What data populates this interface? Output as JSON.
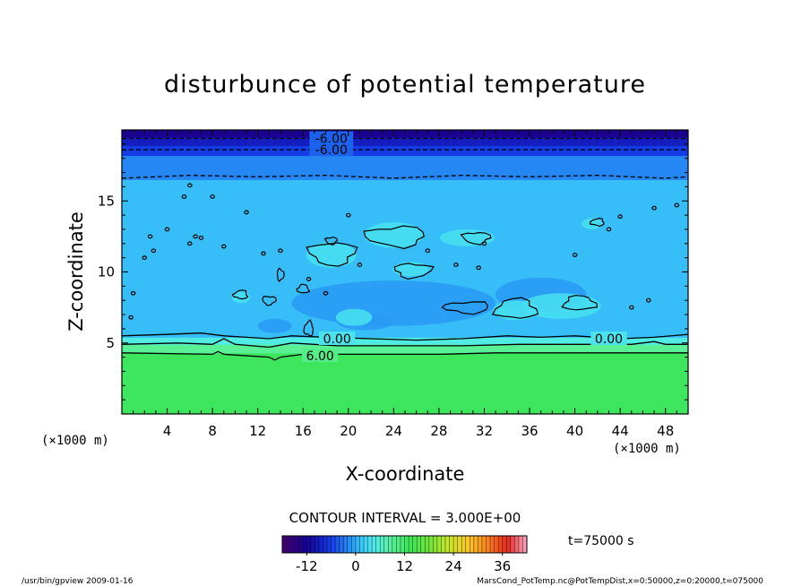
{
  "chart_data": {
    "type": "heatmap",
    "title": "disturbunce of potential temperature",
    "xlabel": "X-coordinate",
    "ylabel": "Z-coordinate",
    "x_unit": "(×1000 m)",
    "z_unit": "(×1000 m)",
    "xlim": [
      0,
      50
    ],
    "ylim": [
      0,
      20
    ],
    "x_ticks": [
      4,
      8,
      12,
      16,
      20,
      24,
      28,
      32,
      36,
      40,
      44,
      48
    ],
    "y_ticks": [
      5,
      10,
      15
    ],
    "contour_interval": "CONTOUR INTERVAL = 3.000E+00",
    "time_label": "t=75000 s",
    "colorbar": {
      "range": [
        -18,
        42
      ],
      "ticks": [
        -12,
        0,
        12,
        24,
        36
      ]
    },
    "bands": [
      {
        "z0": 0.0,
        "z1": 4.3,
        "value": 13
      },
      {
        "z0": 4.3,
        "z1": 4.9,
        "value": 9
      },
      {
        "z0": 4.9,
        "z1": 5.4,
        "value": 5
      },
      {
        "z0": 5.4,
        "z1": 16.5,
        "value": 1
      },
      {
        "z0": 16.5,
        "z1": 18.2,
        "value": -2
      },
      {
        "z0": 18.2,
        "z1": 18.9,
        "value": -6
      },
      {
        "z0": 18.9,
        "z1": 19.5,
        "value": -9
      },
      {
        "z0": 19.5,
        "z1": 20.0,
        "value": -13
      }
    ],
    "contour_labels": [
      {
        "text": "-6.00",
        "x": 18.5,
        "z": 19.4
      },
      {
        "text": "-6.00",
        "x": 18.5,
        "z": 18.6
      },
      {
        "text": "0.00",
        "x": 19.0,
        "z": 5.3
      },
      {
        "text": "0.00",
        "x": 43.0,
        "z": 5.3
      },
      {
        "text": "6.00",
        "x": 17.5,
        "z": 4.1
      }
    ],
    "warm_patches": [
      {
        "x": 24.0,
        "z": 12.6,
        "rx": 2.6,
        "rz": 0.9
      },
      {
        "x": 18.5,
        "z": 11.2,
        "rx": 2.2,
        "rz": 0.9
      },
      {
        "x": 25.5,
        "z": 10.2,
        "rx": 1.6,
        "rz": 0.5
      },
      {
        "x": 30.5,
        "z": 12.4,
        "rx": 2.4,
        "rz": 0.6
      },
      {
        "x": 38.8,
        "z": 7.6,
        "rx": 3.5,
        "rz": 0.9
      },
      {
        "x": 34.8,
        "z": 7.3,
        "rx": 2.0,
        "rz": 0.7
      },
      {
        "x": 41.5,
        "z": 13.4,
        "rx": 0.9,
        "rz": 0.4
      },
      {
        "x": 20.5,
        "z": 6.8,
        "rx": 1.6,
        "rz": 0.6
      },
      {
        "x": 10.5,
        "z": 8.2,
        "rx": 0.8,
        "rz": 0.4
      }
    ],
    "cool_patches": [
      {
        "x": 24.0,
        "z": 7.8,
        "rx": 9.0,
        "rz": 1.6
      },
      {
        "x": 37.0,
        "z": 8.4,
        "rx": 4.0,
        "rz": 1.2
      },
      {
        "x": 21.5,
        "z": 6.5,
        "rx": 2.5,
        "rz": 0.6
      },
      {
        "x": 13.5,
        "z": 6.2,
        "rx": 1.5,
        "rz": 0.5
      }
    ],
    "solid_contours": [
      [
        [
          0,
          5.5
        ],
        [
          4,
          5.6
        ],
        [
          7,
          5.7
        ],
        [
          9,
          5.5
        ],
        [
          11,
          5.4
        ],
        [
          13,
          5.3
        ],
        [
          15,
          5.5
        ],
        [
          18,
          5.4
        ],
        [
          22,
          5.3
        ],
        [
          26,
          5.2
        ],
        [
          30,
          5.3
        ],
        [
          34,
          5.5
        ],
        [
          37,
          5.4
        ],
        [
          40,
          5.5
        ],
        [
          44,
          5.3
        ],
        [
          47,
          5.4
        ],
        [
          50,
          5.6
        ]
      ],
      [
        [
          0,
          4.9
        ],
        [
          5,
          5.0
        ],
        [
          8,
          4.9
        ],
        [
          9,
          5.3
        ],
        [
          10,
          4.9
        ],
        [
          13,
          4.7
        ],
        [
          15,
          5.0
        ],
        [
          19,
          4.8
        ],
        [
          25,
          4.8
        ],
        [
          30,
          4.8
        ],
        [
          35,
          4.9
        ],
        [
          40,
          4.9
        ],
        [
          45,
          4.9
        ],
        [
          47,
          5.1
        ],
        [
          48,
          4.9
        ],
        [
          50,
          4.9
        ]
      ],
      [
        [
          0,
          4.3
        ],
        [
          8,
          4.2
        ],
        [
          8.5,
          4.4
        ],
        [
          9,
          4.2
        ],
        [
          13,
          4.0
        ],
        [
          13.5,
          3.8
        ],
        [
          14,
          4.0
        ],
        [
          16,
          4.2
        ],
        [
          22,
          4.2
        ],
        [
          28,
          4.2
        ],
        [
          33,
          4.3
        ],
        [
          40,
          4.3
        ],
        [
          50,
          4.3
        ]
      ]
    ],
    "dashed_contours": [
      [
        [
          0,
          16.6
        ],
        [
          6,
          16.8
        ],
        [
          12,
          16.7
        ],
        [
          18,
          16.8
        ],
        [
          24,
          16.6
        ],
        [
          30,
          16.8
        ],
        [
          36,
          16.7
        ],
        [
          42,
          16.8
        ],
        [
          48,
          16.6
        ],
        [
          50,
          16.7
        ]
      ],
      [
        [
          0,
          18.6
        ],
        [
          50,
          18.6
        ]
      ],
      [
        [
          0,
          19.4
        ],
        [
          50,
          19.4
        ]
      ]
    ],
    "closed_contours": [
      {
        "x": 24.2,
        "z": 12.5,
        "rx": 2.6,
        "rz": 0.7
      },
      {
        "x": 18.6,
        "z": 11.3,
        "rx": 2.0,
        "rz": 0.8
      },
      {
        "x": 25.7,
        "z": 10.1,
        "rx": 1.6,
        "rz": 0.5
      },
      {
        "x": 31.3,
        "z": 12.4,
        "rx": 1.2,
        "rz": 0.4
      },
      {
        "x": 34.8,
        "z": 7.4,
        "rx": 1.8,
        "rz": 0.7
      },
      {
        "x": 40.4,
        "z": 7.8,
        "rx": 1.4,
        "rz": 0.5
      },
      {
        "x": 30.5,
        "z": 7.5,
        "rx": 2.0,
        "rz": 0.4
      },
      {
        "x": 10.5,
        "z": 8.4,
        "rx": 0.6,
        "rz": 0.3
      },
      {
        "x": 13.0,
        "z": 8.0,
        "rx": 0.6,
        "rz": 0.3
      },
      {
        "x": 16.0,
        "z": 8.8,
        "rx": 0.5,
        "rz": 0.3
      },
      {
        "x": 18.5,
        "z": 12.2,
        "rx": 0.5,
        "rz": 0.25
      },
      {
        "x": 42.0,
        "z": 13.5,
        "rx": 0.6,
        "rz": 0.25
      },
      {
        "x": 14.0,
        "z": 9.8,
        "rx": 0.3,
        "rz": 0.4
      },
      {
        "x": 16.5,
        "z": 6.0,
        "rx": 0.4,
        "rz": 0.5
      }
    ],
    "small_dots": [
      [
        6,
        16.1
      ],
      [
        5.5,
        15.3
      ],
      [
        8,
        15.3
      ],
      [
        11,
        14.2
      ],
      [
        4,
        13
      ],
      [
        2.5,
        12.5
      ],
      [
        6,
        12
      ],
      [
        6.5,
        12.5
      ],
      [
        7,
        12.4
      ],
      [
        9,
        11.8
      ],
      [
        2,
        11
      ],
      [
        2.8,
        11.5
      ],
      [
        1,
        8.5
      ],
      [
        0.8,
        6.8
      ],
      [
        14,
        11.5
      ],
      [
        16.5,
        9.5
      ],
      [
        18,
        8.5
      ],
      [
        21,
        10.5
      ],
      [
        27,
        11.5
      ],
      [
        29.5,
        10.5
      ],
      [
        31.5,
        10.3
      ],
      [
        32,
        12
      ],
      [
        40,
        11.2
      ],
      [
        45,
        7.5
      ],
      [
        46.5,
        8
      ],
      [
        47,
        14.5
      ],
      [
        49,
        14.7
      ],
      [
        43,
        13
      ],
      [
        44,
        13.9
      ],
      [
        20,
        14
      ],
      [
        12.5,
        11.3
      ]
    ]
  },
  "footer": {
    "left": "/usr/bin/gpview   2009-01-16",
    "right": "MarsCond_PotTemp.nc@PotTempDist,x=0:50000,z=0:20000,t=075000"
  }
}
